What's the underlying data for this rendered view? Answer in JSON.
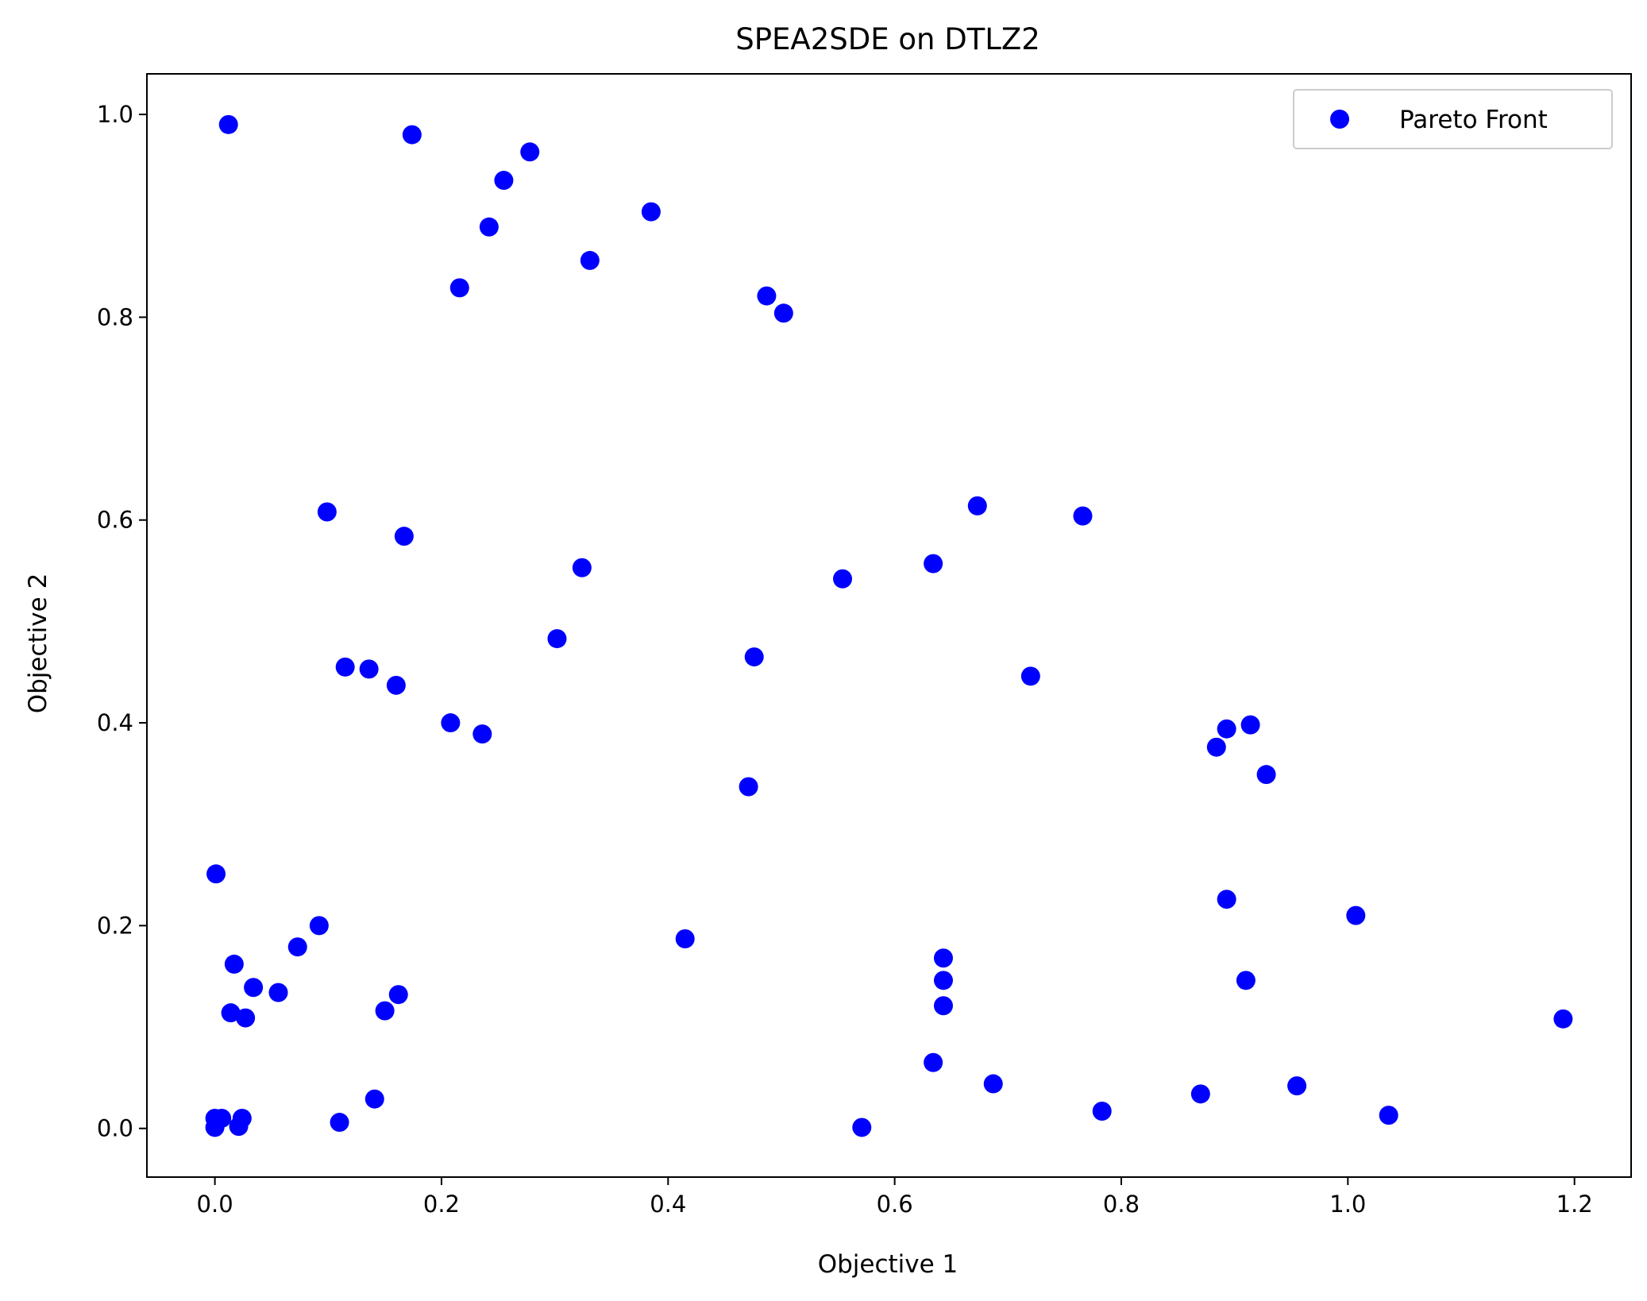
{
  "chart_data": {
    "type": "scatter",
    "title": "SPEA2SDE on DTLZ2",
    "xlabel": "Objective 1",
    "ylabel": "Objective 2",
    "xlim": [
      -0.06,
      1.25
    ],
    "ylim": [
      -0.048,
      1.04
    ],
    "xticks": [
      0.0,
      0.2,
      0.4,
      0.6,
      0.8,
      1.0,
      1.2
    ],
    "yticks": [
      0.0,
      0.2,
      0.4,
      0.6,
      0.8,
      1.0
    ],
    "grid": false,
    "legend_position": "top-right",
    "series": [
      {
        "name": "Pareto Front",
        "color": "#0000ff",
        "points": [
          [
            0.012,
            0.99
          ],
          [
            0.174,
            0.98
          ],
          [
            0.278,
            0.963
          ],
          [
            0.255,
            0.935
          ],
          [
            0.242,
            0.889
          ],
          [
            0.385,
            0.904
          ],
          [
            0.331,
            0.856
          ],
          [
            0.216,
            0.829
          ],
          [
            0.487,
            0.821
          ],
          [
            0.502,
            0.804
          ],
          [
            0.099,
            0.608
          ],
          [
            0.167,
            0.584
          ],
          [
            0.673,
            0.614
          ],
          [
            0.766,
            0.604
          ],
          [
            0.324,
            0.553
          ],
          [
            0.554,
            0.542
          ],
          [
            0.634,
            0.557
          ],
          [
            0.302,
            0.483
          ],
          [
            0.476,
            0.465
          ],
          [
            0.115,
            0.455
          ],
          [
            0.136,
            0.453
          ],
          [
            0.16,
            0.437
          ],
          [
            0.72,
            0.446
          ],
          [
            0.208,
            0.4
          ],
          [
            0.236,
            0.389
          ],
          [
            0.914,
            0.398
          ],
          [
            0.893,
            0.394
          ],
          [
            0.884,
            0.376
          ],
          [
            0.928,
            0.349
          ],
          [
            0.471,
            0.337
          ],
          [
            0.001,
            0.251
          ],
          [
            0.893,
            0.226
          ],
          [
            1.007,
            0.21
          ],
          [
            0.092,
            0.2
          ],
          [
            0.073,
            0.179
          ],
          [
            0.415,
            0.187
          ],
          [
            0.017,
            0.162
          ],
          [
            0.643,
            0.168
          ],
          [
            0.643,
            0.146
          ],
          [
            0.91,
            0.146
          ],
          [
            0.034,
            0.139
          ],
          [
            0.056,
            0.134
          ],
          [
            0.162,
            0.132
          ],
          [
            0.643,
            0.121
          ],
          [
            0.014,
            0.114
          ],
          [
            0.15,
            0.116
          ],
          [
            0.027,
            0.109
          ],
          [
            1.19,
            0.108
          ],
          [
            0.634,
            0.065
          ],
          [
            0.687,
            0.044
          ],
          [
            0.955,
            0.042
          ],
          [
            0.87,
            0.034
          ],
          [
            0.141,
            0.029
          ],
          [
            0.783,
            0.017
          ],
          [
            1.036,
            0.013
          ],
          [
            0.0,
            0.01
          ],
          [
            0.006,
            0.01
          ],
          [
            0.024,
            0.01
          ],
          [
            0.11,
            0.006
          ],
          [
            0.021,
            0.002
          ],
          [
            0.0,
            0.001
          ],
          [
            0.571,
            0.001
          ]
        ]
      }
    ]
  }
}
